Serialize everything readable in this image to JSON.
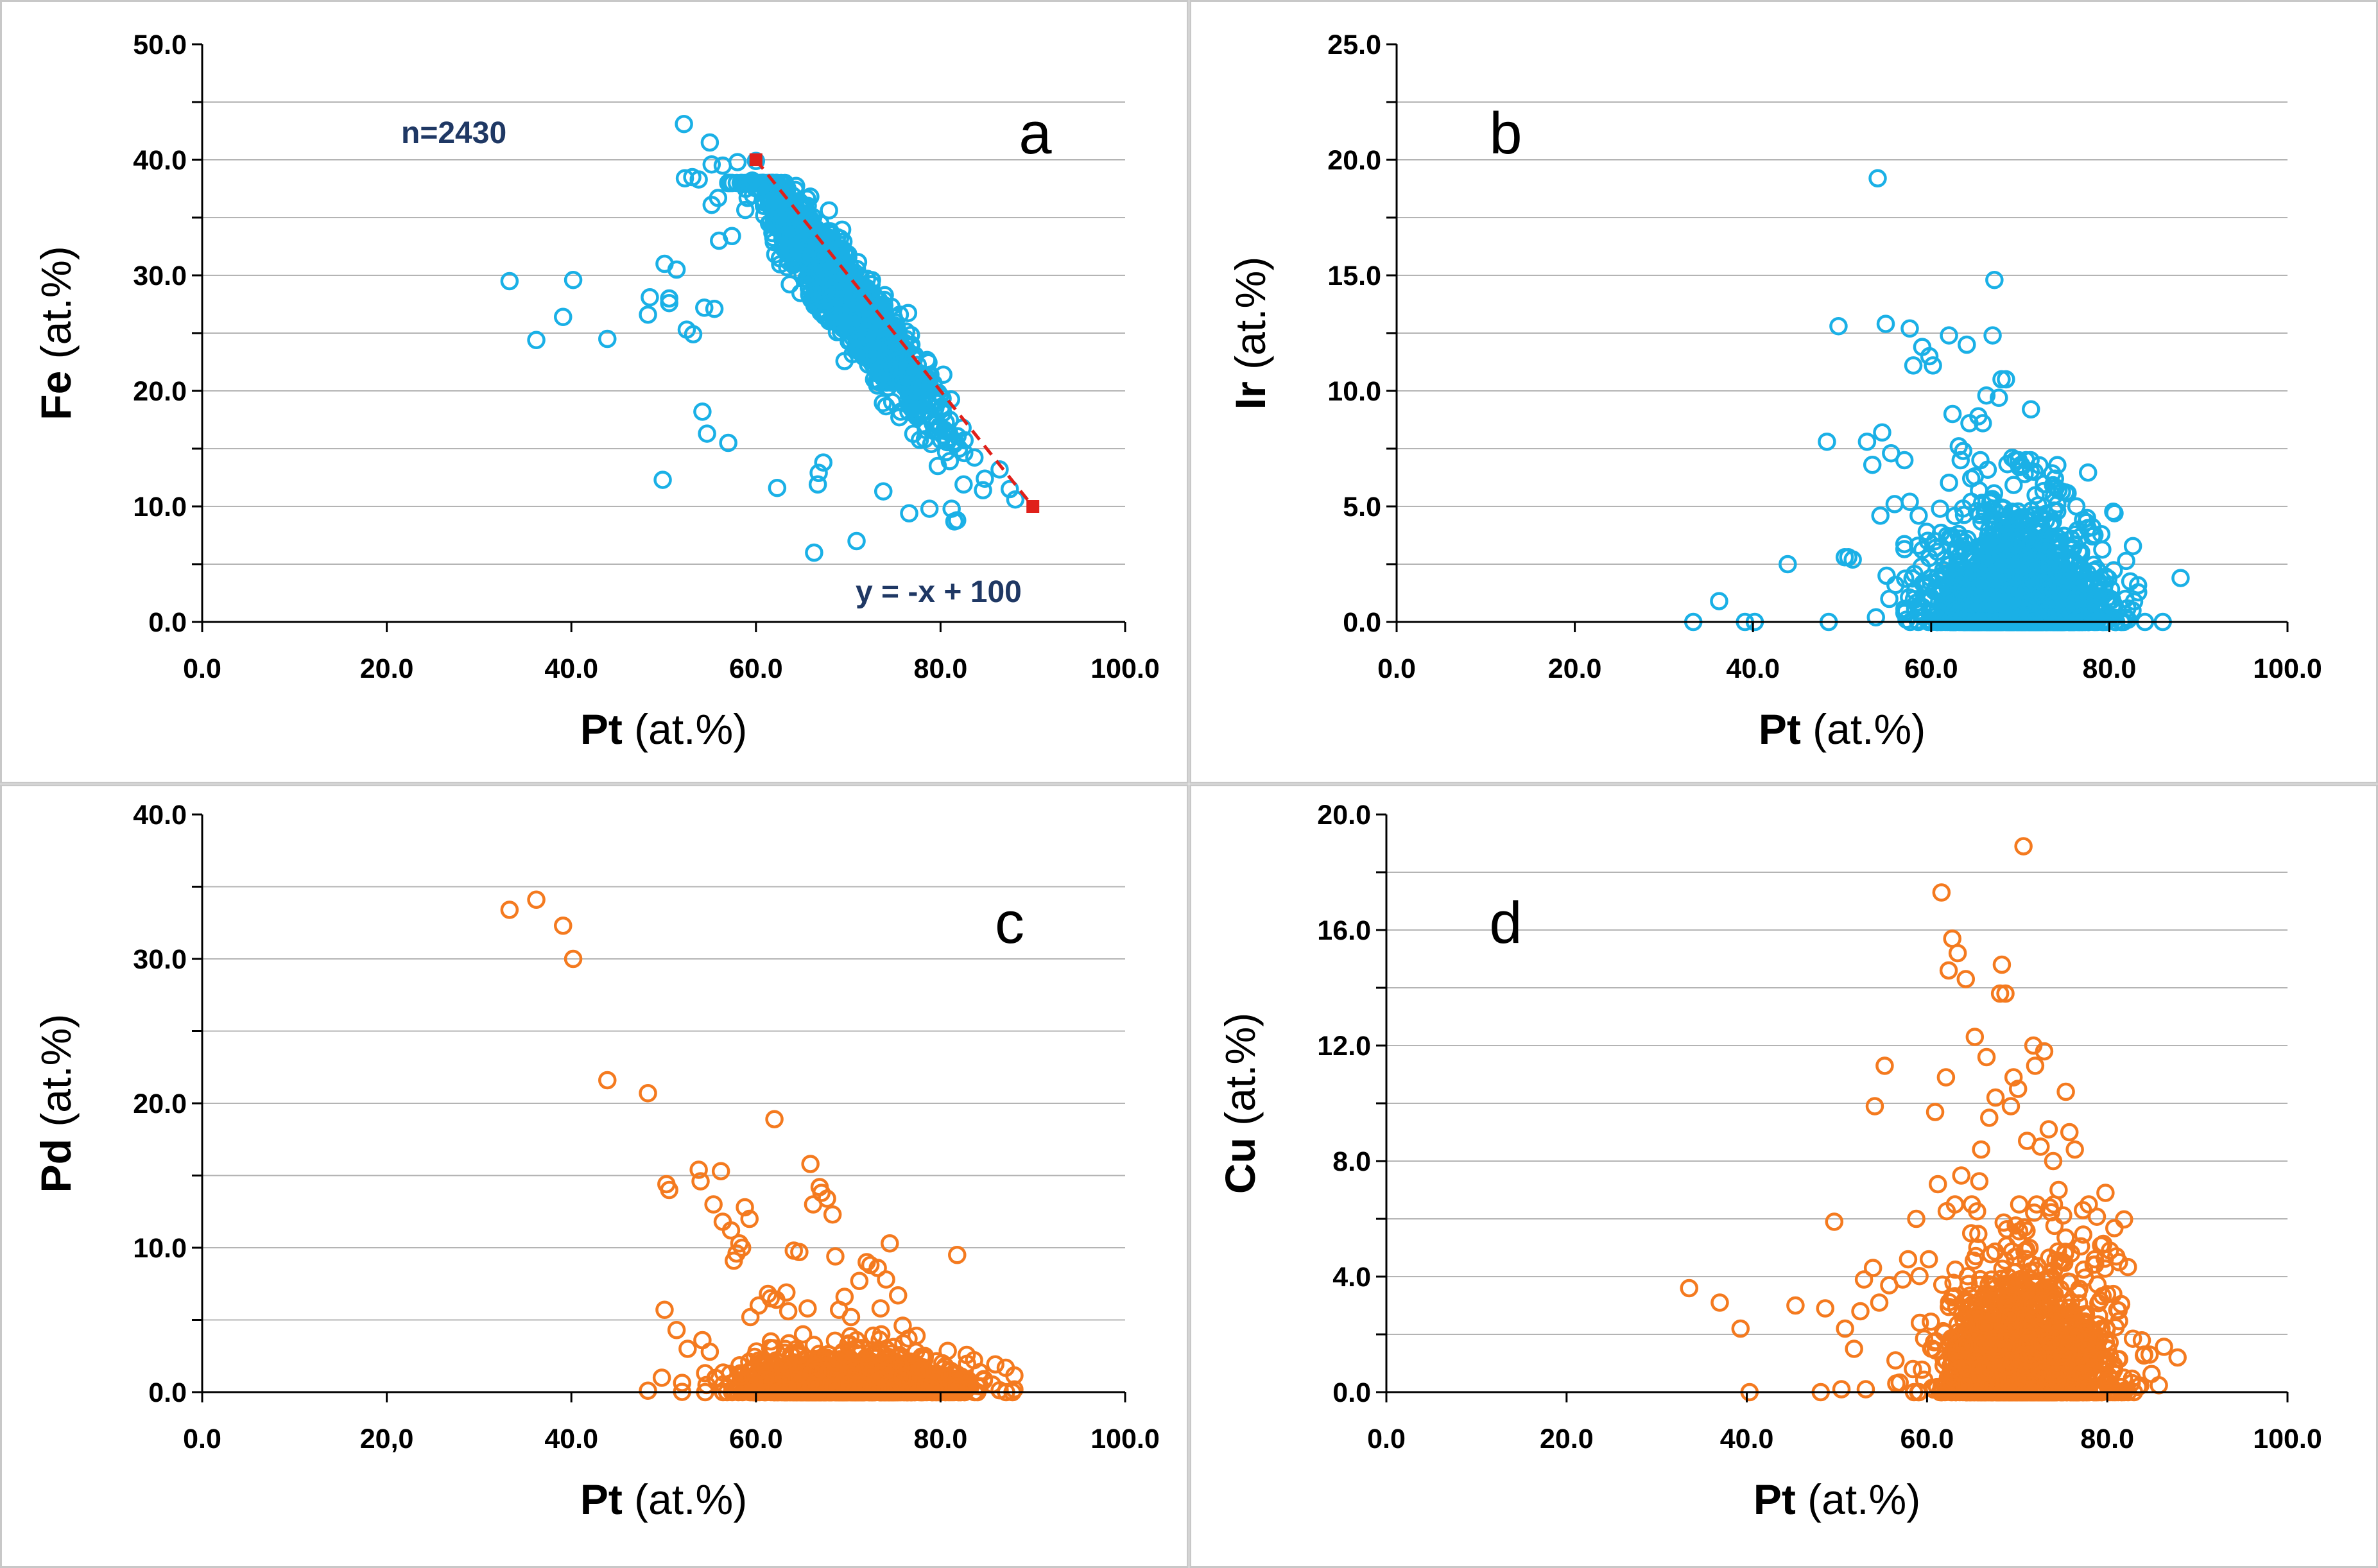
{
  "colors": {
    "blue": "#1ab0e6",
    "orange": "#f47a1f",
    "trend": "#e0201a",
    "ann": "#1f3864",
    "grid": "#b4b4b4"
  },
  "chart_data": [
    {
      "id": "a",
      "type": "scatter",
      "panel_label": "a",
      "title": "",
      "xlabel_bold": "Pt",
      "xlabel_rest": " (at.%)",
      "ylabel_bold": "Fe",
      "ylabel_rest": " (at.%)",
      "xlim": [
        0,
        100
      ],
      "ylim": [
        0,
        50
      ],
      "xticks": [
        "0.0",
        "20.0",
        "40.0",
        "60.0",
        "80.0",
        "100.0"
      ],
      "yticks": [
        "0.0",
        "10.0",
        "20.0",
        "30.0",
        "40.0",
        "50.0"
      ],
      "xtick_values": [
        0,
        20,
        40,
        60,
        80,
        100
      ],
      "ytick_values": [
        0,
        10,
        20,
        30,
        40,
        50
      ],
      "grid_step": 5,
      "color": "blue",
      "n_points": 2430,
      "annotations": {
        "n_label": "n=2430",
        "equation": "y = -x + 100"
      },
      "trend_line": {
        "x": [
          60,
          90
        ],
        "y": [
          40,
          10
        ]
      },
      "cluster": {
        "x_mean": 69.5,
        "x_sd": 4.6,
        "y": "100 - x - Ir - Pd - Cu",
        "y_sd": 2.2,
        "x_min": 57,
        "x_max": 88
      },
      "points": [
        [
          33.3,
          29.5
        ],
        [
          36.2,
          24.4
        ],
        [
          39.1,
          26.4
        ],
        [
          40.2,
          29.6
        ],
        [
          43.9,
          24.5
        ],
        [
          48.3,
          26.6
        ],
        [
          48.5,
          28.1
        ],
        [
          49.9,
          12.3
        ],
        [
          50.1,
          31.0
        ],
        [
          50.6,
          28.0
        ],
        [
          50.6,
          27.6
        ],
        [
          51.4,
          30.5
        ],
        [
          52.2,
          43.1
        ],
        [
          52.3,
          38.4
        ],
        [
          52.5,
          25.3
        ],
        [
          53.1,
          38.5
        ],
        [
          53.2,
          24.9
        ],
        [
          53.8,
          38.3
        ],
        [
          54.2,
          18.2
        ],
        [
          54.4,
          27.2
        ],
        [
          54.7,
          16.3
        ],
        [
          55.0,
          41.5
        ],
        [
          55.2,
          39.6
        ],
        [
          55.5,
          27.1
        ],
        [
          55.2,
          36.1
        ],
        [
          55.9,
          36.7
        ],
        [
          56.0,
          33.0
        ],
        [
          56.4,
          39.5
        ],
        [
          57.0,
          15.5
        ],
        [
          57.4,
          33.4
        ],
        [
          58.0,
          39.8
        ],
        [
          58.9,
          37.5
        ],
        [
          59.1,
          36.7
        ],
        [
          59.6,
          38.2
        ],
        [
          60.0,
          39.9
        ],
        [
          62.3,
          11.6
        ],
        [
          63.3,
          35.6
        ],
        [
          64.5,
          33.3
        ],
        [
          66.3,
          6.0
        ],
        [
          66.7,
          11.9
        ],
        [
          66.8,
          12.9
        ],
        [
          67.3,
          13.8
        ],
        [
          70.9,
          7.0
        ],
        [
          73.8,
          11.3
        ],
        [
          76.6,
          9.4
        ],
        [
          78.8,
          9.8
        ],
        [
          78.9,
          21.4
        ],
        [
          79.7,
          13.5
        ],
        [
          80.3,
          21.4
        ],
        [
          80.6,
          14.7
        ],
        [
          81.0,
          17.5
        ],
        [
          81.2,
          9.8
        ],
        [
          81.5,
          8.7
        ],
        [
          81.8,
          8.8
        ],
        [
          82.0,
          15.0
        ],
        [
          82.5,
          11.9
        ],
        [
          84.6,
          11.4
        ],
        [
          84.8,
          12.4
        ],
        [
          86.4,
          13.2
        ],
        [
          87.5,
          11.5
        ],
        [
          88.1,
          10.6
        ]
      ]
    },
    {
      "id": "b",
      "type": "scatter",
      "panel_label": "b",
      "title": "",
      "xlabel_bold": "Pt",
      "xlabel_rest": " (at.%)",
      "ylabel_bold": "Ir",
      "ylabel_rest": " (at.%)",
      "xlim": [
        0,
        100
      ],
      "ylim": [
        0,
        25
      ],
      "xticks": [
        "0.0",
        "20.0",
        "40.0",
        "60.0",
        "80.0",
        "100.0"
      ],
      "yticks": [
        "0.0",
        "5.0",
        "10.0",
        "15.0",
        "20.0",
        "25.0"
      ],
      "xtick_values": [
        0,
        20,
        40,
        60,
        80,
        100
      ],
      "ytick_values": [
        0,
        5,
        10,
        15,
        20,
        25
      ],
      "grid_step": 2.5,
      "color": "blue",
      "n_points": 2430,
      "cluster": {
        "x_mean": 69.5,
        "x_sd": 4.6,
        "y_scale": 1.7,
        "y_max": 7,
        "x_min": 57,
        "x_max": 88
      },
      "points": [
        [
          33.3,
          0.0
        ],
        [
          36.2,
          0.9
        ],
        [
          39.1,
          0.0
        ],
        [
          40.2,
          0.0
        ],
        [
          43.9,
          2.5
        ],
        [
          48.3,
          7.8
        ],
        [
          48.5,
          0.0
        ],
        [
          49.6,
          12.8
        ],
        [
          50.3,
          2.8
        ],
        [
          50.7,
          2.8
        ],
        [
          51.2,
          2.7
        ],
        [
          52.8,
          7.8
        ],
        [
          53.4,
          6.8
        ],
        [
          53.8,
          0.2
        ],
        [
          54.0,
          19.2
        ],
        [
          54.3,
          4.6
        ],
        [
          54.5,
          8.2
        ],
        [
          54.9,
          12.9
        ],
        [
          55.0,
          2.0
        ],
        [
          55.3,
          1.0
        ],
        [
          55.5,
          7.3
        ],
        [
          55.9,
          5.1
        ],
        [
          56.0,
          1.6
        ],
        [
          57.0,
          7.0
        ],
        [
          57.6,
          12.7
        ],
        [
          57.6,
          5.2
        ],
        [
          58.0,
          11.1
        ],
        [
          58.6,
          4.6
        ],
        [
          59.0,
          11.9
        ],
        [
          59.5,
          3.9
        ],
        [
          59.8,
          11.5
        ],
        [
          60.2,
          11.1
        ],
        [
          60.5,
          3.2
        ],
        [
          61.0,
          4.9
        ],
        [
          62.0,
          12.4
        ],
        [
          62.4,
          9.0
        ],
        [
          62.9,
          0.3
        ],
        [
          63.1,
          7.6
        ],
        [
          63.6,
          7.4
        ],
        [
          64.0,
          12.0
        ],
        [
          64.3,
          8.6
        ],
        [
          64.5,
          5.2
        ],
        [
          64.9,
          6.3
        ],
        [
          65.3,
          8.9
        ],
        [
          65.8,
          8.6
        ],
        [
          66.2,
          9.8
        ],
        [
          66.9,
          12.4
        ],
        [
          67.1,
          14.8
        ],
        [
          67.6,
          9.7
        ],
        [
          67.9,
          10.5
        ],
        [
          68.4,
          10.5
        ],
        [
          69.1,
          7.1
        ],
        [
          69.9,
          6.7
        ],
        [
          70.1,
          6.8
        ],
        [
          70.5,
          6.4
        ],
        [
          71.2,
          9.2
        ],
        [
          71.6,
          6.5
        ],
        [
          72.1,
          4.2
        ],
        [
          73.9,
          6.2
        ],
        [
          74.3,
          5.7
        ],
        [
          75.1,
          5.6
        ],
        [
          76.3,
          5.0
        ],
        [
          77.5,
          4.5
        ],
        [
          78.1,
          4.1
        ],
        [
          79.1,
          3.8
        ],
        [
          81.8,
          1.0
        ],
        [
          82.6,
          0.5
        ],
        [
          84.0,
          0.0
        ],
        [
          86.0,
          0.0
        ],
        [
          88.0,
          1.9
        ]
      ]
    },
    {
      "id": "c",
      "type": "scatter",
      "panel_label": "c",
      "title": "",
      "xlabel_bold": "Pt",
      "xlabel_rest": " (at.%)",
      "ylabel_bold": "Pd",
      "ylabel_rest": " (at.%)",
      "xlim": [
        0,
        100
      ],
      "ylim": [
        0,
        40
      ],
      "xticks": [
        "0.0",
        "20,0",
        "40.0",
        "60.0",
        "80.0",
        "100.0"
      ],
      "yticks": [
        "0.0",
        "10.0",
        "20.0",
        "30.0",
        "40.0"
      ],
      "xtick_values": [
        0,
        20,
        40,
        60,
        80,
        100
      ],
      "ytick_values": [
        0,
        10,
        20,
        30,
        40
      ],
      "grid_step": 5,
      "color": "orange",
      "n_points": 2430,
      "cluster": {
        "x_mean": 70,
        "x_sd": 5.5,
        "y_scale": 0.9,
        "y_max": 4,
        "x_min": 52,
        "x_max": 88
      },
      "points": [
        [
          33.3,
          33.4
        ],
        [
          36.2,
          34.1
        ],
        [
          39.1,
          32.3
        ],
        [
          40.2,
          30.0
        ],
        [
          43.9,
          21.6
        ],
        [
          48.3,
          20.7
        ],
        [
          48.3,
          0.1
        ],
        [
          49.8,
          1.0
        ],
        [
          50.1,
          5.7
        ],
        [
          50.3,
          14.4
        ],
        [
          50.6,
          14.0
        ],
        [
          51.4,
          4.3
        ],
        [
          52.6,
          3.0
        ],
        [
          53.8,
          15.4
        ],
        [
          54.0,
          14.6
        ],
        [
          54.2,
          3.6
        ],
        [
          55.0,
          2.8
        ],
        [
          55.4,
          13.0
        ],
        [
          56.2,
          15.3
        ],
        [
          56.4,
          11.8
        ],
        [
          57.3,
          11.2
        ],
        [
          57.6,
          9.1
        ],
        [
          57.9,
          9.6
        ],
        [
          58.2,
          10.3
        ],
        [
          58.5,
          10.0
        ],
        [
          58.8,
          12.8
        ],
        [
          59.3,
          12.0
        ],
        [
          59.4,
          5.2
        ],
        [
          60.3,
          6.0
        ],
        [
          61.0,
          1.9
        ],
        [
          61.3,
          6.8
        ],
        [
          61.6,
          6.5
        ],
        [
          62.0,
          18.9
        ],
        [
          62.2,
          6.4
        ],
        [
          63.3,
          6.9
        ],
        [
          63.5,
          5.6
        ],
        [
          64.1,
          9.8
        ],
        [
          64.7,
          9.7
        ],
        [
          65.1,
          4.0
        ],
        [
          65.6,
          5.8
        ],
        [
          65.9,
          15.8
        ],
        [
          66.2,
          13.0
        ],
        [
          66.9,
          14.2
        ],
        [
          67.1,
          13.8
        ],
        [
          67.7,
          13.4
        ],
        [
          68.3,
          12.3
        ],
        [
          68.6,
          9.4
        ],
        [
          69.0,
          5.7
        ],
        [
          69.6,
          6.6
        ],
        [
          70.3,
          5.2
        ],
        [
          71.2,
          7.7
        ],
        [
          72.0,
          9.0
        ],
        [
          72.4,
          8.8
        ],
        [
          73.2,
          8.6
        ],
        [
          73.5,
          5.8
        ],
        [
          74.1,
          7.8
        ],
        [
          74.5,
          10.3
        ],
        [
          75.4,
          6.7
        ],
        [
          75.9,
          4.6
        ],
        [
          77.4,
          3.9
        ],
        [
          78.3,
          2.5
        ],
        [
          80.2,
          2.0
        ],
        [
          81.8,
          9.5
        ],
        [
          83.0,
          0.6
        ],
        [
          84.7,
          0.9
        ],
        [
          87.1,
          0.0
        ],
        [
          87.8,
          0.0
        ]
      ]
    },
    {
      "id": "d",
      "type": "scatter",
      "panel_label": "d",
      "title": "",
      "xlabel_bold": "Pt",
      "xlabel_rest": " (at.%)",
      "ylabel_bold": "Cu",
      "ylabel_rest": " (at.%)",
      "xlim": [
        0,
        100
      ],
      "ylim": [
        0,
        20
      ],
      "xticks": [
        "0.0",
        "20.0",
        "40.0",
        "60.0",
        "80.0",
        "100.0"
      ],
      "yticks": [
        "0.0",
        "4.0",
        "8.0",
        "12.0",
        "16.0",
        "20.0"
      ],
      "xtick_values": [
        0,
        20,
        40,
        60,
        80,
        100
      ],
      "ytick_values": [
        0,
        4,
        8,
        12,
        16,
        20
      ],
      "grid_step": 2,
      "color": "orange",
      "n_points": 2430,
      "cluster": {
        "x_mean": 71,
        "x_sd": 4.6,
        "y_scale": 1.6,
        "y_max": 6.5,
        "x_min": 52,
        "x_max": 88
      },
      "points": [
        [
          33.6,
          3.6
        ],
        [
          37.0,
          3.1
        ],
        [
          39.3,
          2.2
        ],
        [
          40.3,
          0.0
        ],
        [
          45.4,
          3.0
        ],
        [
          48.2,
          0.0
        ],
        [
          48.7,
          2.9
        ],
        [
          49.7,
          5.9
        ],
        [
          50.5,
          0.1
        ],
        [
          50.9,
          2.2
        ],
        [
          51.9,
          1.5
        ],
        [
          52.6,
          2.8
        ],
        [
          53.0,
          3.9
        ],
        [
          53.2,
          0.1
        ],
        [
          54.0,
          4.3
        ],
        [
          54.2,
          9.9
        ],
        [
          54.7,
          3.1
        ],
        [
          55.3,
          11.3
        ],
        [
          55.8,
          3.7
        ],
        [
          56.5,
          1.1
        ],
        [
          57.3,
          3.9
        ],
        [
          57.9,
          4.6
        ],
        [
          58.8,
          6.0
        ],
        [
          59.2,
          2.4
        ],
        [
          60.2,
          4.6
        ],
        [
          60.9,
          9.7
        ],
        [
          61.2,
          7.2
        ],
        [
          61.6,
          17.3
        ],
        [
          62.1,
          10.9
        ],
        [
          62.4,
          14.6
        ],
        [
          62.8,
          15.7
        ],
        [
          63.1,
          6.5
        ],
        [
          63.4,
          15.2
        ],
        [
          63.8,
          7.5
        ],
        [
          64.3,
          14.3
        ],
        [
          64.9,
          5.5
        ],
        [
          65.3,
          12.3
        ],
        [
          65.8,
          7.3
        ],
        [
          66.0,
          8.4
        ],
        [
          66.6,
          11.6
        ],
        [
          66.9,
          9.5
        ],
        [
          67.6,
          10.2
        ],
        [
          68.1,
          13.8
        ],
        [
          68.3,
          14.8
        ],
        [
          68.7,
          13.8
        ],
        [
          69.3,
          9.9
        ],
        [
          69.6,
          10.9
        ],
        [
          70.1,
          10.5
        ],
        [
          70.7,
          18.9
        ],
        [
          71.1,
          8.7
        ],
        [
          71.8,
          12.0
        ],
        [
          72.0,
          11.3
        ],
        [
          72.6,
          8.5
        ],
        [
          73.0,
          11.8
        ],
        [
          73.5,
          9.1
        ],
        [
          74.0,
          8.0
        ],
        [
          74.6,
          7.0
        ],
        [
          75.4,
          10.4
        ],
        [
          75.8,
          9.0
        ],
        [
          76.4,
          8.4
        ],
        [
          77.3,
          6.3
        ],
        [
          79.8,
          6.9
        ],
        [
          80.3,
          4.9
        ],
        [
          81.0,
          4.7
        ],
        [
          81.3,
          4.5
        ],
        [
          84.1,
          1.3
        ],
        [
          84.7,
          1.3
        ],
        [
          87.8,
          1.2
        ]
      ]
    }
  ]
}
